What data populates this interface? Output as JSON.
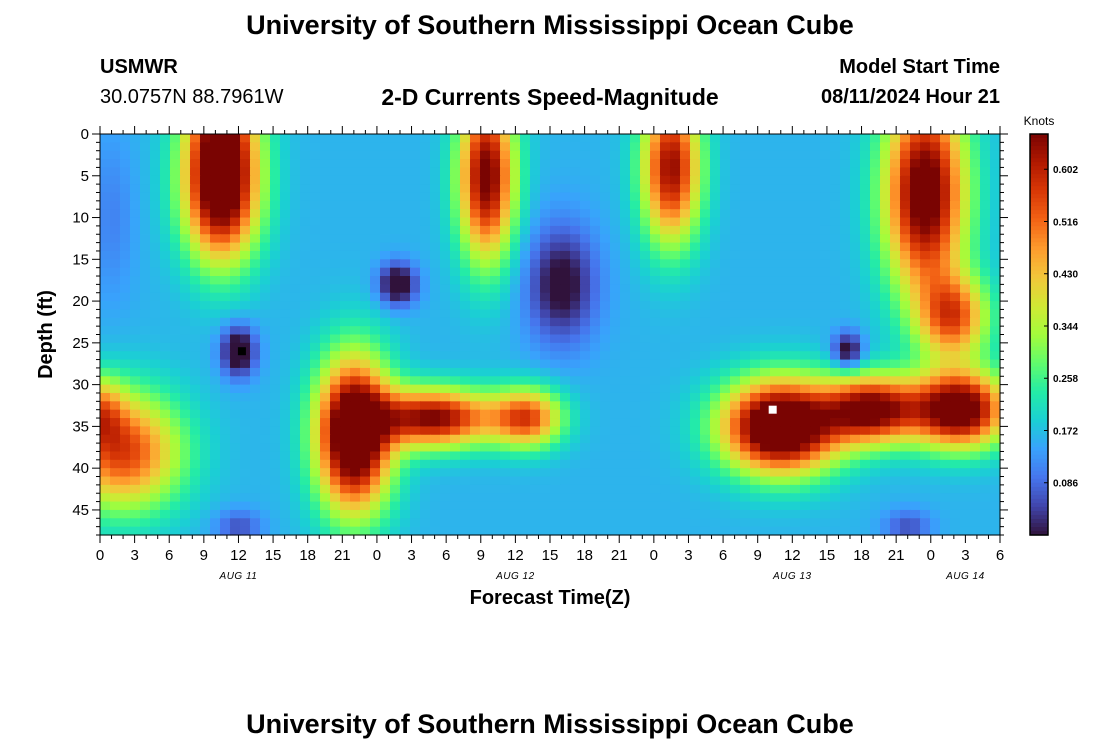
{
  "header": {
    "title": "University of Southern Mississippi Ocean Cube",
    "station_name": "USMWR",
    "station_coords": "30.0757N  88.7961W",
    "plot_title": "2-D Currents Speed-Magnitude",
    "model_start_label": "Model Start Time",
    "model_start_value": "08/11/2024 Hour 21"
  },
  "footer": {
    "title": "University of Southern Mississippi Ocean Cube"
  },
  "chart_data": {
    "type": "heatmap",
    "title": "2-D Currents Speed-Magnitude",
    "xlabel": "Forecast Time(Z)",
    "ylabel": "Depth (ft)",
    "x_tick_labels": [
      "0",
      "3",
      "6",
      "9",
      "12",
      "15",
      "18",
      "21",
      "0",
      "3",
      "6",
      "9",
      "12",
      "15",
      "18",
      "21",
      "0",
      "3",
      "6",
      "9",
      "12",
      "15",
      "18",
      "21",
      "0",
      "3",
      "6"
    ],
    "x_range_hours": [
      0,
      78
    ],
    "date_labels": [
      {
        "label": "AUG 11",
        "hour": 12
      },
      {
        "label": "AUG 12",
        "hour": 36
      },
      {
        "label": "AUG 13",
        "hour": 60
      },
      {
        "label": "AUG 14",
        "hour": 75
      }
    ],
    "y_tick_labels": [
      "0",
      "5",
      "10",
      "15",
      "20",
      "25",
      "30",
      "35",
      "40",
      "45"
    ],
    "y_range_ft": [
      0,
      48
    ],
    "y_inverted": true,
    "colorbar": {
      "label": "Knots",
      "ticks": [
        "0.602",
        "0.516",
        "0.430",
        "0.344",
        "0.258",
        "0.172",
        "0.086"
      ],
      "tick_values": [
        0.602,
        0.516,
        0.43,
        0.344,
        0.258,
        0.172,
        0.086
      ],
      "range": [
        0.0,
        0.66
      ],
      "colormap": [
        "#30123b",
        "#4145ab",
        "#4675ed",
        "#39a2fc",
        "#1bcfd4",
        "#24eca6",
        "#61fc6c",
        "#a4fc3b",
        "#d1e834",
        "#f3c63a",
        "#fe9b2d",
        "#f36315",
        "#d93806",
        "#b11901",
        "#7a0402"
      ]
    },
    "markers": [
      {
        "hour": 12.3,
        "depth_ft": 26,
        "color": "#000000"
      },
      {
        "hour": 58.3,
        "depth_ft": 33,
        "color": "#ffffff"
      }
    ],
    "blobs": [
      {
        "hour": 10.5,
        "depth_ft": 6,
        "sx": 3.2,
        "sy": 9,
        "amp": 0.62
      },
      {
        "hour": 10.5,
        "depth_ft": -2,
        "sx": 3.0,
        "sy": 6,
        "amp": 0.2
      },
      {
        "hour": 33.5,
        "depth_ft": 5,
        "sx": 2.4,
        "sy": 10,
        "amp": 0.52
      },
      {
        "hour": 49.5,
        "depth_ft": 4,
        "sx": 2.5,
        "sy": 9,
        "amp": 0.48
      },
      {
        "hour": 71.5,
        "depth_ft": 7,
        "sx": 3.5,
        "sy": 12,
        "amp": 0.56
      },
      {
        "hour": 74.0,
        "depth_ft": 22,
        "sx": 3.0,
        "sy": 5,
        "amp": 0.35
      },
      {
        "hour": 22.0,
        "depth_ft": 36,
        "sx": 3.2,
        "sy": 9,
        "amp": 0.65
      },
      {
        "hour": 29.0,
        "depth_ft": 34,
        "sx": 5.0,
        "sy": 3.5,
        "amp": 0.5
      },
      {
        "hour": 37.0,
        "depth_ft": 34,
        "sx": 3.0,
        "sy": 3.5,
        "amp": 0.38
      },
      {
        "hour": 59.0,
        "depth_ft": 35,
        "sx": 5.0,
        "sy": 5.5,
        "amp": 0.66
      },
      {
        "hour": 67.0,
        "depth_ft": 33,
        "sx": 4.0,
        "sy": 4.0,
        "amp": 0.5
      },
      {
        "hour": 74.5,
        "depth_ft": 33,
        "sx": 4.0,
        "sy": 4.5,
        "amp": 0.58
      },
      {
        "hour": 2.0,
        "depth_ft": 38,
        "sx": 5.0,
        "sy": 7,
        "amp": 0.4
      },
      {
        "hour": 0.0,
        "depth_ft": 33,
        "sx": 2.0,
        "sy": 4,
        "amp": 0.2
      },
      {
        "hour": 12.0,
        "depth_ft": 26,
        "sx": 1.5,
        "sy": 3,
        "amp": -0.22
      },
      {
        "hour": 25.8,
        "depth_ft": 18,
        "sx": 1.6,
        "sy": 2.5,
        "amp": -0.22
      },
      {
        "hour": 40.0,
        "depth_ft": 18,
        "sx": 3.0,
        "sy": 7,
        "amp": -0.18
      },
      {
        "hour": 64.8,
        "depth_ft": 26,
        "sx": 1.3,
        "sy": 2.2,
        "amp": -0.2
      },
      {
        "hour": 70.0,
        "depth_ft": 47,
        "sx": 2.0,
        "sy": 2,
        "amp": -0.1
      },
      {
        "hour": 12.0,
        "depth_ft": 47,
        "sx": 2.0,
        "sy": 2,
        "amp": -0.1
      },
      {
        "hour": 1.0,
        "depth_ft": 10,
        "sx": 2.0,
        "sy": 10,
        "amp": -0.05
      }
    ],
    "background_value": 0.16
  }
}
